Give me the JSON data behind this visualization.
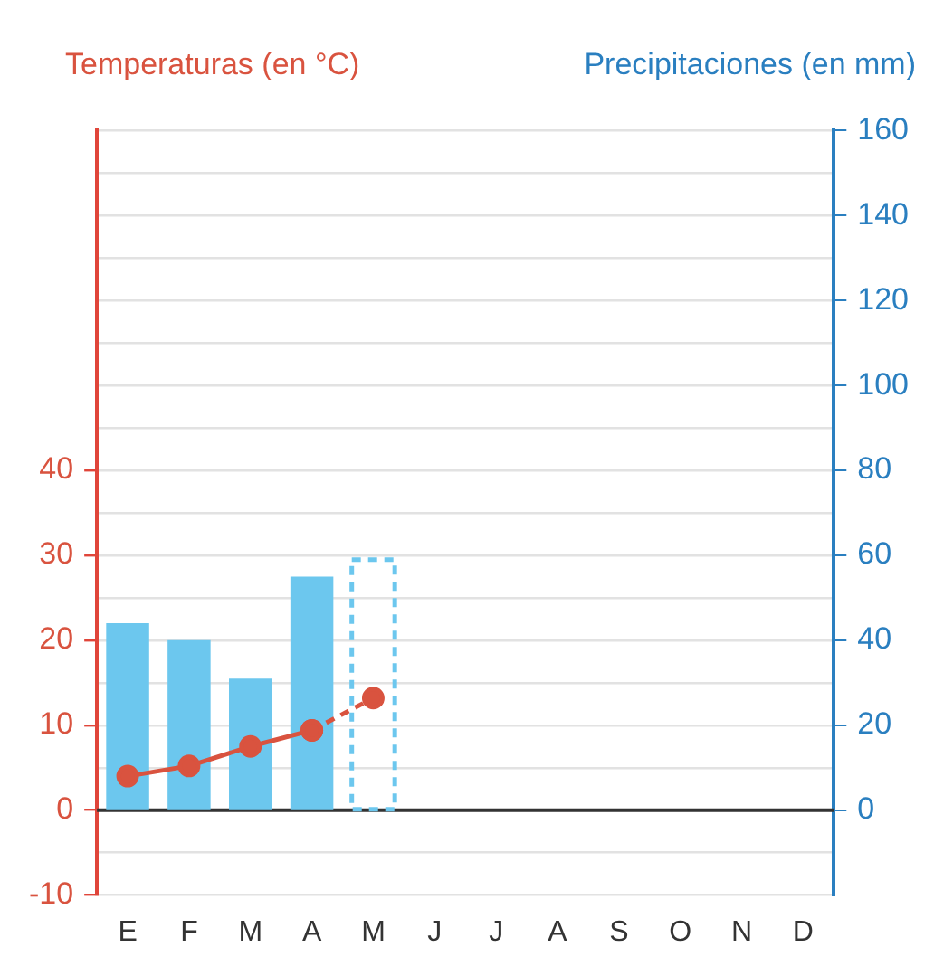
{
  "chart_data": {
    "type": "bar",
    "ylabel": "Temperaturas (en °C)",
    "y2label": "Precipitaciones (en mm)",
    "categories": [
      "E",
      "F",
      "M",
      "A",
      "M",
      "J",
      "J",
      "A",
      "S",
      "O",
      "N",
      "D"
    ],
    "series": [
      {
        "axis": "y2",
        "color": "#6cc7ee",
        "values": [
          44,
          40,
          31,
          55,
          null,
          null,
          null,
          null,
          null,
          null,
          null,
          null
        ]
      },
      {
        "axis": "y2",
        "color": "#6cc7ee",
        "line_style": "dashed",
        "values": [
          null,
          null,
          null,
          null,
          59,
          null,
          null,
          null,
          null,
          null,
          null,
          null
        ]
      },
      {
        "type": "line",
        "axis": "y",
        "color": "#d9533f",
        "marker": "circle",
        "values": [
          4,
          5.2,
          7.5,
          9.4,
          null,
          null,
          null,
          null,
          null,
          null,
          null,
          null
        ]
      },
      {
        "type": "line",
        "axis": "y",
        "color": "#d9533f",
        "marker": "circle",
        "line_style": "dashed",
        "values": [
          null,
          null,
          null,
          9.4,
          13.2,
          null,
          null,
          null,
          null,
          null,
          null,
          null
        ]
      }
    ],
    "ylim": [
      -10,
      80
    ],
    "yticks": [
      -10,
      {
        "value": -5,
        "label": null
      },
      0,
      {
        "value": 5,
        "label": null
      },
      10,
      {
        "value": 15,
        "label": null
      },
      20,
      {
        "value": 25,
        "label": null
      },
      30,
      {
        "value": 35,
        "label": null
      },
      40,
      {
        "value": 45,
        "label": null
      },
      {
        "value": 50,
        "label": null
      },
      {
        "value": 55,
        "label": null
      },
      {
        "value": 60,
        "label": null
      },
      {
        "value": 65,
        "label": null
      },
      {
        "value": 70,
        "label": null
      },
      {
        "value": 75,
        "label": null
      },
      {
        "value": 80,
        "label": null
      }
    ],
    "y2lim": [
      -20,
      160
    ],
    "y2ticks": [
      0,
      20,
      40,
      60,
      80,
      100,
      120,
      140,
      160
    ],
    "grid": "y",
    "ref_lines": [
      {
        "axis": "y",
        "value": 0,
        "color": "#333333"
      }
    ]
  }
}
